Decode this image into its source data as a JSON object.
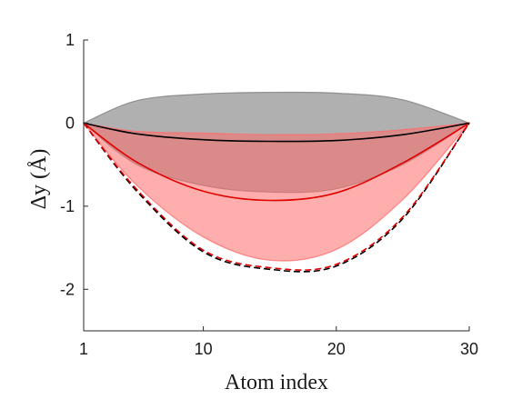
{
  "chart_data": {
    "type": "area",
    "title": "",
    "xlabel": "Atom index",
    "ylabel": "Δy (Å)",
    "xlim": [
      1,
      30
    ],
    "ylim": [
      -2.5,
      1
    ],
    "xticks": [
      1,
      10,
      20,
      30
    ],
    "yticks": [
      1,
      0,
      -1,
      -2
    ],
    "xtick_labels": [
      "1",
      "10",
      "20",
      "30"
    ],
    "ytick_labels": [
      "1",
      "0",
      "-1",
      "-2"
    ],
    "grid": false,
    "x": [
      1,
      5,
      10,
      15,
      20,
      25,
      30
    ],
    "series": [
      {
        "style": "band",
        "color": "#808080",
        "upper": [
          0,
          0.27,
          0.35,
          0.37,
          0.36,
          0.28,
          0
        ],
        "lower": [
          0,
          -0.5,
          -0.75,
          -0.83,
          -0.79,
          -0.5,
          0
        ]
      },
      {
        "style": "band",
        "color": "#ff6b6b",
        "upper": [
          0,
          -0.1,
          -0.12,
          -0.14,
          -0.13,
          -0.08,
          0
        ],
        "lower": [
          0,
          -0.75,
          -1.37,
          -1.65,
          -1.52,
          -0.92,
          0
        ]
      },
      {
        "style": "solid",
        "color": "#000000",
        "values": [
          0,
          -0.13,
          -0.2,
          -0.22,
          -0.21,
          -0.14,
          0
        ]
      },
      {
        "style": "solid",
        "color": "#e00000",
        "values": [
          0,
          -0.47,
          -0.82,
          -0.93,
          -0.84,
          -0.48,
          0
        ]
      },
      {
        "style": "dashed",
        "color": "#000000",
        "values": [
          0,
          -0.82,
          -1.55,
          -1.76,
          -1.72,
          -1.15,
          0
        ]
      },
      {
        "style": "dashed",
        "color": "#e00000",
        "values": [
          0,
          -0.8,
          -1.53,
          -1.74,
          -1.7,
          -1.13,
          0
        ]
      }
    ]
  }
}
